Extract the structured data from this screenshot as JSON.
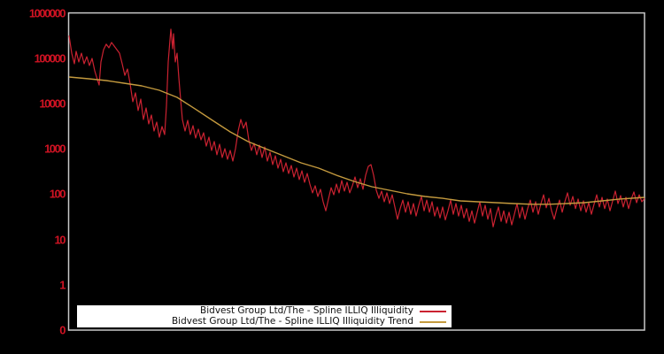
{
  "colors": {
    "background": "#000000",
    "axis": "#c9c9c9",
    "tick_label": "#d01323",
    "series_illiquidity": "#cb2231",
    "series_trend": "#c49a3e",
    "legend_bg": "#ffffff",
    "legend_text": "#111111"
  },
  "chart_data": {
    "type": "line",
    "title": "",
    "grid": false,
    "legend_position": "bottom-inside",
    "x_axis": {
      "label": "",
      "tick_labels": []
    },
    "y_axis": {
      "scale": "log10",
      "tick_labels": [
        "1000000",
        "100000",
        "10000",
        "1000",
        "100",
        "10",
        "1",
        "0"
      ],
      "tick_values": [
        1000000,
        100000,
        10000,
        1000,
        100,
        10,
        1,
        0.1
      ],
      "range": [
        0.1,
        1000000
      ]
    },
    "series": [
      {
        "name": "Bidvest Group Ltd/The - Spline ILLIQ Illiquidity",
        "color": "#cb2231",
        "x_unit": "px",
        "points": [
          [
            78,
            316000
          ],
          [
            81,
            129000
          ],
          [
            84,
            75600
          ],
          [
            86,
            142000
          ],
          [
            89,
            82700
          ],
          [
            92,
            129000
          ],
          [
            95,
            75600
          ],
          [
            98,
            108000
          ],
          [
            101,
            69100
          ],
          [
            104,
            99000
          ],
          [
            107,
            52800
          ],
          [
            110,
            33700
          ],
          [
            112,
            25700
          ],
          [
            114,
            82700
          ],
          [
            117,
            155000
          ],
          [
            120,
            204000
          ],
          [
            123,
            170000
          ],
          [
            126,
            223000
          ],
          [
            129,
            186000
          ],
          [
            132,
            155000
          ],
          [
            135,
            129000
          ],
          [
            138,
            75600
          ],
          [
            141,
            42000
          ],
          [
            144,
            57800
          ],
          [
            147,
            27000
          ],
          [
            150,
            11000
          ],
          [
            153,
            17200
          ],
          [
            156,
            7000
          ],
          [
            159,
            12500
          ],
          [
            162,
            4450
          ],
          [
            165,
            7990
          ],
          [
            168,
            3560
          ],
          [
            171,
            5580
          ],
          [
            174,
            2480
          ],
          [
            177,
            3890
          ],
          [
            180,
            1810
          ],
          [
            183,
            3100
          ],
          [
            186,
            2070
          ],
          [
            188,
            8740
          ],
          [
            190,
            82700
          ],
          [
            192,
            256000
          ],
          [
            193,
            437000
          ],
          [
            195,
            162000
          ],
          [
            196,
            347000
          ],
          [
            198,
            82700
          ],
          [
            200,
            129000
          ],
          [
            202,
            36900
          ],
          [
            204,
            12500
          ],
          [
            206,
            4450
          ],
          [
            209,
            2480
          ],
          [
            212,
            4260
          ],
          [
            215,
            2070
          ],
          [
            218,
            3250
          ],
          [
            221,
            1730
          ],
          [
            224,
            2720
          ],
          [
            227,
            1580
          ],
          [
            230,
            2270
          ],
          [
            233,
            1150
          ],
          [
            236,
            1810
          ],
          [
            239,
            923
          ],
          [
            242,
            1450
          ],
          [
            245,
            740
          ],
          [
            248,
            1265
          ],
          [
            251,
            644
          ],
          [
            254,
            1010
          ],
          [
            257,
            589
          ],
          [
            260,
            923
          ],
          [
            263,
            538
          ],
          [
            266,
            1010
          ],
          [
            269,
            2480
          ],
          [
            272,
            4450
          ],
          [
            275,
            2850
          ],
          [
            278,
            3890
          ],
          [
            281,
            1580
          ],
          [
            284,
            923
          ],
          [
            287,
            1320
          ],
          [
            290,
            740
          ],
          [
            293,
            1210
          ],
          [
            296,
            644
          ],
          [
            299,
            1100
          ],
          [
            302,
            538
          ],
          [
            305,
            843
          ],
          [
            308,
            449
          ],
          [
            311,
            705
          ],
          [
            314,
            375
          ],
          [
            317,
            589
          ],
          [
            320,
            313
          ],
          [
            323,
            491
          ],
          [
            326,
            287
          ],
          [
            329,
            430
          ],
          [
            332,
            239
          ],
          [
            335,
            375
          ],
          [
            338,
            210
          ],
          [
            341,
            328
          ],
          [
            344,
            183
          ],
          [
            347,
            287
          ],
          [
            350,
            167
          ],
          [
            353,
            107
          ],
          [
            356,
            153
          ],
          [
            359,
            89
          ],
          [
            362,
            128
          ],
          [
            365,
            68
          ],
          [
            368,
            43
          ],
          [
            371,
            78
          ],
          [
            374,
            139
          ],
          [
            377,
            97
          ],
          [
            380,
            167
          ],
          [
            383,
            107
          ],
          [
            386,
            200
          ],
          [
            389,
            117
          ],
          [
            392,
            183
          ],
          [
            395,
            107
          ],
          [
            398,
            153
          ],
          [
            401,
            239
          ],
          [
            404,
            139
          ],
          [
            407,
            219
          ],
          [
            410,
            128
          ],
          [
            413,
            262
          ],
          [
            416,
            410
          ],
          [
            419,
            449
          ],
          [
            422,
            262
          ],
          [
            425,
            122
          ],
          [
            428,
            81
          ],
          [
            431,
            117
          ],
          [
            434,
            68
          ],
          [
            437,
            107
          ],
          [
            440,
            62
          ],
          [
            443,
            97
          ],
          [
            446,
            52
          ],
          [
            449,
            28
          ],
          [
            452,
            48
          ],
          [
            455,
            74
          ],
          [
            458,
            40
          ],
          [
            461,
            68
          ],
          [
            464,
            36
          ],
          [
            467,
            62
          ],
          [
            470,
            33
          ],
          [
            473,
            57
          ],
          [
            476,
            89
          ],
          [
            479,
            43
          ],
          [
            482,
            74
          ],
          [
            485,
            40
          ],
          [
            488,
            68
          ],
          [
            491,
            33
          ],
          [
            494,
            52
          ],
          [
            497,
            30
          ],
          [
            500,
            52
          ],
          [
            503,
            27
          ],
          [
            506,
            43
          ],
          [
            509,
            74
          ],
          [
            512,
            36
          ],
          [
            515,
            62
          ],
          [
            518,
            33
          ],
          [
            521,
            57
          ],
          [
            524,
            30
          ],
          [
            527,
            48
          ],
          [
            530,
            25
          ],
          [
            533,
            43
          ],
          [
            536,
            23
          ],
          [
            539,
            40
          ],
          [
            542,
            68
          ],
          [
            545,
            33
          ],
          [
            548,
            57
          ],
          [
            551,
            28
          ],
          [
            554,
            48
          ],
          [
            557,
            19
          ],
          [
            560,
            33
          ],
          [
            563,
            52
          ],
          [
            566,
            25
          ],
          [
            569,
            43
          ],
          [
            572,
            23
          ],
          [
            575,
            40
          ],
          [
            578,
            21
          ],
          [
            581,
            36
          ],
          [
            584,
            62
          ],
          [
            587,
            30
          ],
          [
            590,
            52
          ],
          [
            593,
            28
          ],
          [
            596,
            48
          ],
          [
            599,
            74
          ],
          [
            602,
            40
          ],
          [
            605,
            68
          ],
          [
            608,
            36
          ],
          [
            611,
            62
          ],
          [
            614,
            97
          ],
          [
            617,
            50
          ],
          [
            620,
            81
          ],
          [
            623,
            43
          ],
          [
            626,
            28
          ],
          [
            629,
            48
          ],
          [
            632,
            74
          ],
          [
            635,
            40
          ],
          [
            638,
            68
          ],
          [
            641,
            107
          ],
          [
            644,
            57
          ],
          [
            647,
            89
          ],
          [
            650,
            48
          ],
          [
            653,
            78
          ],
          [
            656,
            43
          ],
          [
            659,
            71
          ],
          [
            662,
            40
          ],
          [
            665,
            65
          ],
          [
            668,
            36
          ],
          [
            671,
            60
          ],
          [
            674,
            97
          ],
          [
            677,
            52
          ],
          [
            680,
            85
          ],
          [
            683,
            48
          ],
          [
            686,
            78
          ],
          [
            689,
            43
          ],
          [
            692,
            71
          ],
          [
            695,
            117
          ],
          [
            698,
            62
          ],
          [
            701,
            93
          ],
          [
            704,
            52
          ],
          [
            707,
            85
          ],
          [
            710,
            48
          ],
          [
            713,
            78
          ],
          [
            716,
            112
          ],
          [
            719,
            65
          ],
          [
            722,
            97
          ],
          [
            725,
            68
          ],
          [
            728,
            81
          ]
        ]
      },
      {
        "name": "Bidvest Group Ltd/The - Spline ILLIQ Illiquidity Trend",
        "color": "#c49a3e",
        "x_unit": "px",
        "points": [
          [
            78,
            38600
          ],
          [
            100,
            35300
          ],
          [
            120,
            32200
          ],
          [
            140,
            28100
          ],
          [
            160,
            24600
          ],
          [
            180,
            19600
          ],
          [
            200,
            13700
          ],
          [
            220,
            7700
          ],
          [
            240,
            4260
          ],
          [
            260,
            2370
          ],
          [
            280,
            1450
          ],
          [
            300,
            1010
          ],
          [
            320,
            705
          ],
          [
            340,
            491
          ],
          [
            360,
            375
          ],
          [
            380,
            262
          ],
          [
            400,
            191
          ],
          [
            420,
            146
          ],
          [
            440,
            122
          ],
          [
            460,
            102
          ],
          [
            480,
            89
          ],
          [
            500,
            81
          ],
          [
            520,
            71
          ],
          [
            540,
            68
          ],
          [
            560,
            65
          ],
          [
            580,
            62
          ],
          [
            600,
            60
          ],
          [
            620,
            60
          ],
          [
            640,
            62
          ],
          [
            660,
            65
          ],
          [
            680,
            71
          ],
          [
            700,
            78
          ],
          [
            728,
            85
          ]
        ]
      }
    ]
  }
}
